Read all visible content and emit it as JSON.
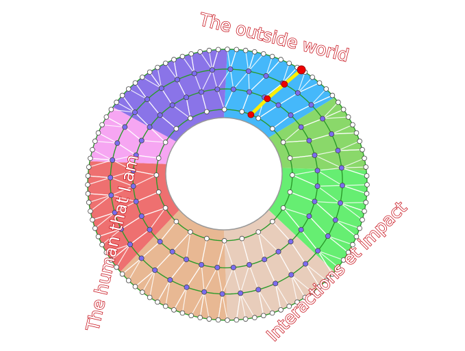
{
  "labels": {
    "top": "The outside world",
    "left": "The human that I am",
    "right": "Interactions et impact"
  },
  "colors": {
    "label": "#c8141e",
    "ring_line": "#2a9a2a",
    "spoke": "#ffffff",
    "inner_point": "#ffffff",
    "mid_point": "#7b6cf0",
    "path": "#ffee00",
    "path_point": "#ee0000"
  },
  "sectors": [
    {
      "name": "blue",
      "color": "#45b8fa"
    },
    {
      "name": "olive-green",
      "color": "#8ad86a"
    },
    {
      "name": "green",
      "color": "#66ee72"
    },
    {
      "name": "light-beige",
      "color": "#e8cdbb"
    },
    {
      "name": "tan",
      "color": "#e8b893"
    },
    {
      "name": "red",
      "color": "#ee7070"
    },
    {
      "name": "pink",
      "color": "#f6a6f2"
    },
    {
      "name": "purple",
      "color": "#8a74e8"
    }
  ]
}
